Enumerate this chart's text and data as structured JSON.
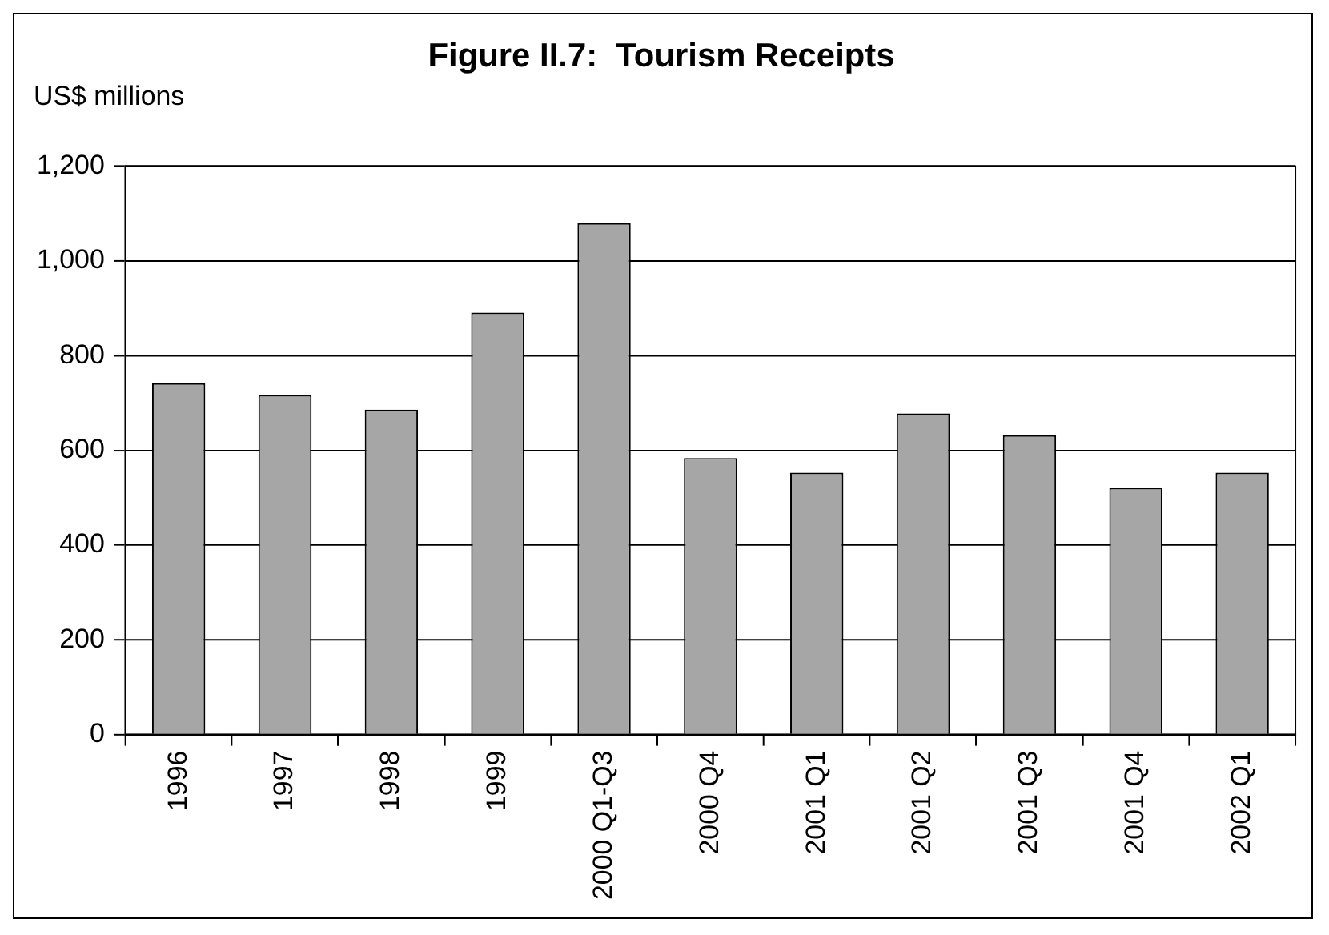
{
  "chart_data": {
    "type": "bar",
    "title": "Figure II.7:  Tourism Receipts",
    "ylabel": "US$ millions",
    "categories": [
      "1996",
      "1997",
      "1998",
      "1999",
      "2000 Q1-Q3",
      "2000 Q4",
      "2001 Q1",
      "2001 Q2",
      "2001 Q3",
      "2001 Q4",
      "2002 Q1"
    ],
    "values": [
      742,
      717,
      686,
      891,
      1080,
      584,
      553,
      678,
      632,
      521,
      553
    ],
    "color": "#a6a6a6",
    "ylim": [
      0,
      1200
    ],
    "yticks": [
      0,
      200,
      400,
      600,
      800,
      {
        "value": 1000,
        "label": "1,000"
      },
      {
        "value": 1200,
        "label": "1,200"
      }
    ],
    "grid": "y"
  }
}
